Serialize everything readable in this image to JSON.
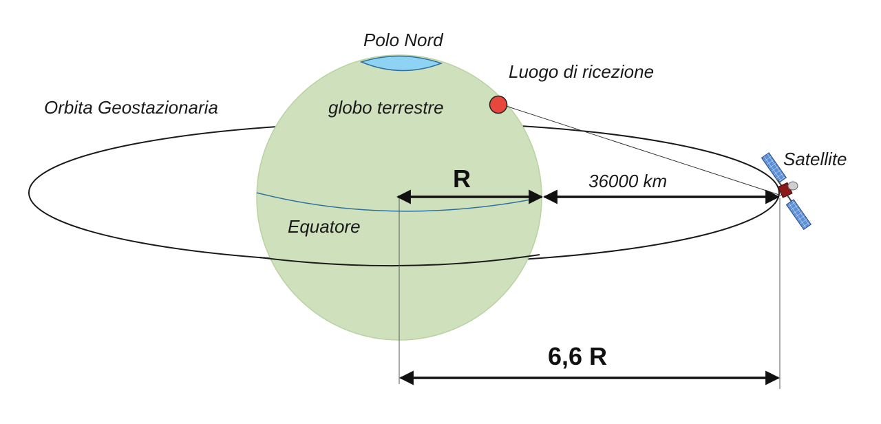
{
  "labels": {
    "north_pole": "Polo Nord",
    "reception_site": "Luogo di ricezione",
    "geo_orbit": "Orbita Geostazionaria",
    "earth": "globo terrestre",
    "satellite": "Satellite",
    "radius": "R",
    "altitude": "36000 km",
    "equator": "Equatore",
    "orbit_radius": "6,6 R"
  },
  "colors": {
    "earth_fill": "#cfe0bd",
    "earth_edge": "#b9d2a2",
    "pole_cap": "#8ed3f4",
    "pole_edge": "#2e6f9e",
    "equator_line": "#2b6f9a",
    "reception_dot": "#e8473c",
    "orbit_line": "#1a1a1a",
    "satellite_body": "#8b1a1a",
    "solar_panel": "#5b8fd6"
  },
  "icons": {
    "satellite": "satellite-icon",
    "reception_site": "location-dot-icon"
  }
}
